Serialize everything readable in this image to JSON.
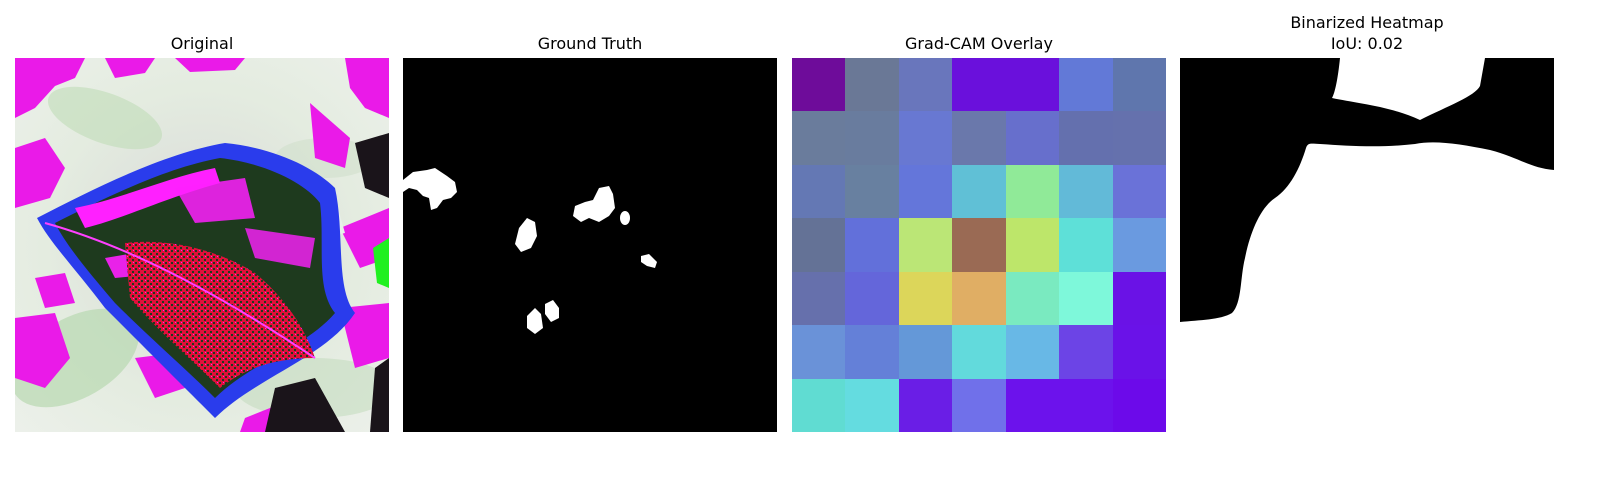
{
  "panels": [
    {
      "title": "Original"
    },
    {
      "title": "Ground Truth"
    },
    {
      "title": "Grad-CAM Overlay"
    },
    {
      "title": "Binarized Heatmap",
      "subtitle": "IoU: 0.02"
    }
  ],
  "colors": {
    "background": "#ffffff",
    "mask_foreground": "#ffffff",
    "mask_background": "#000000"
  },
  "gradcam_grid": [
    [
      "#6e0c9a",
      "#6a7896",
      "#6976bc",
      "#6a10dc",
      "#6a10dc",
      "#6279d7",
      "#5f76ad"
    ],
    [
      "#6a7c9c",
      "#697c9e",
      "#6878d2",
      "#6a78ab",
      "#676fcc",
      "#6470ae",
      "#6571ad"
    ],
    [
      "#6478b4",
      "#6880a0",
      "#6476da",
      "#60c0d6",
      "#90ea98",
      "#62bad8",
      "#6a72d8"
    ],
    [
      "#647296",
      "#6270da",
      "#bbe676",
      "#9a6a54",
      "#bde66a",
      "#5ee0d8",
      "#6a9ae0"
    ],
    [
      "#6670ac",
      "#6466da",
      "#dcd65a",
      "#e0ae64",
      "#7aeac0",
      "#7ef8da",
      "#6a12e6"
    ],
    [
      "#6a92d8",
      "#6480d8",
      "#6498d8",
      "#62dadc",
      "#68b8e6",
      "#6c44e6",
      "#6a12e8"
    ],
    [
      "#60dcd2",
      "#64dce0",
      "#6a1ee6",
      "#7070ea",
      "#6c12ec",
      "#6c12ec",
      "#6c0aea"
    ]
  ]
}
